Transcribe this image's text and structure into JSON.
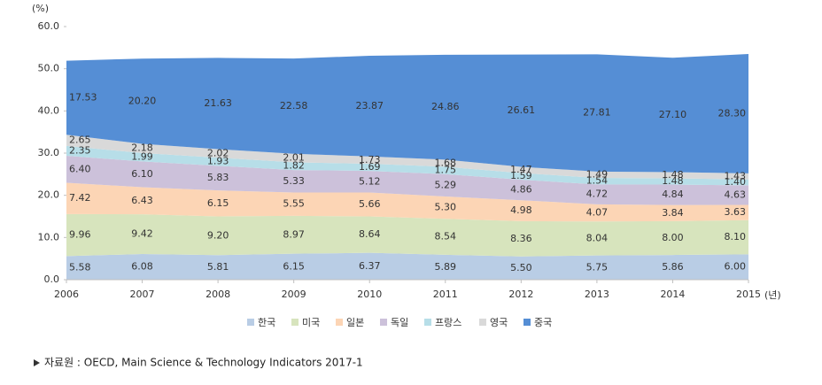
{
  "chart_data": {
    "type": "stacked-area",
    "y_label": "(%)",
    "x_label": "(년)",
    "x": [
      2006,
      2007,
      2008,
      2009,
      2010,
      2011,
      2012,
      2013,
      2014,
      2015
    ],
    "xlim": [
      2006,
      2015
    ],
    "ylim": [
      0,
      60
    ],
    "yticks": [
      {
        "value": 0,
        "label": "0.0"
      },
      {
        "value": 10,
        "label": "10.0"
      },
      {
        "value": 20,
        "label": "20.0"
      },
      {
        "value": 30,
        "label": "30.0"
      },
      {
        "value": 40,
        "label": "40.0"
      },
      {
        "value": 50,
        "label": "50.0"
      },
      {
        "value": 60,
        "label": "60.0"
      }
    ],
    "grid": false,
    "legend": "bottom",
    "series": [
      {
        "name": "한국",
        "color": "#b9cde5",
        "values": [
          5.58,
          6.08,
          5.81,
          6.15,
          6.37,
          5.89,
          5.5,
          5.75,
          5.86,
          6
        ],
        "value_labels": [
          "5.58",
          "6.08",
          "5.81",
          "6.15",
          "6.37",
          "5.89",
          "5.50",
          "5.75",
          "5.86",
          "6.00"
        ]
      },
      {
        "name": "미국",
        "color": "#d7e4bd",
        "values": [
          9.96,
          9.42,
          9.2,
          8.97,
          8.64,
          8.54,
          8.36,
          8.04,
          8,
          8.1
        ],
        "value_labels": [
          "9.96",
          "9.42",
          "9.20",
          "8.97",
          "8.64",
          "8.54",
          "8.36",
          "8.04",
          "8.00",
          "8.10"
        ]
      },
      {
        "name": "일본",
        "color": "#fcd5b5",
        "values": [
          7.42,
          6.43,
          6.15,
          5.55,
          5.66,
          5.3,
          4.98,
          4.07,
          3.84,
          3.63
        ],
        "value_labels": [
          "7.42",
          "6.43",
          "6.15",
          "5.55",
          "5.66",
          "5.30",
          "4.98",
          "4.07",
          "3.84",
          "3.63"
        ]
      },
      {
        "name": "독일",
        "color": "#ccc1da",
        "values": [
          6.4,
          6.1,
          5.83,
          5.33,
          5.12,
          5.29,
          4.86,
          4.72,
          4.84,
          4.63
        ],
        "value_labels": [
          "6.40",
          "6.10",
          "5.83",
          "5.33",
          "5.12",
          "5.29",
          "4.86",
          "4.72",
          "4.84",
          "4.63"
        ]
      },
      {
        "name": "프랑스",
        "color": "#b7dee8",
        "values": [
          2.35,
          1.99,
          1.93,
          1.82,
          1.69,
          1.75,
          1.59,
          1.54,
          1.48,
          1.4
        ],
        "value_labels": [
          "2.35",
          "1.99",
          "1.93",
          "1.82",
          "1.69",
          "1.75",
          "1.59",
          "1.54",
          "1.48",
          "1.40"
        ]
      },
      {
        "name": "영국",
        "color": "#d9d9d9",
        "values": [
          2.65,
          2.18,
          2.02,
          2.01,
          1.73,
          1.68,
          1.47,
          1.49,
          1.48,
          1.43
        ],
        "value_labels": [
          "2.65",
          "2.18",
          "2.02",
          "2.01",
          "1.73",
          "1.68",
          "1.47",
          "1.49",
          "1.48",
          "1.43"
        ]
      },
      {
        "name": "중국",
        "color": "#558ed5",
        "values": [
          17.53,
          20.2,
          21.63,
          22.58,
          23.87,
          24.86,
          26.61,
          27.81,
          27.1,
          28.3
        ],
        "value_labels": [
          "17.53",
          "20.20",
          "21.63",
          "22.58",
          "23.87",
          "24.86",
          "26.61",
          "27.81",
          "27.10",
          "28.30"
        ]
      }
    ],
    "source": "자료원 : OECD, Main Science & Technology Indicators 2017-1"
  }
}
